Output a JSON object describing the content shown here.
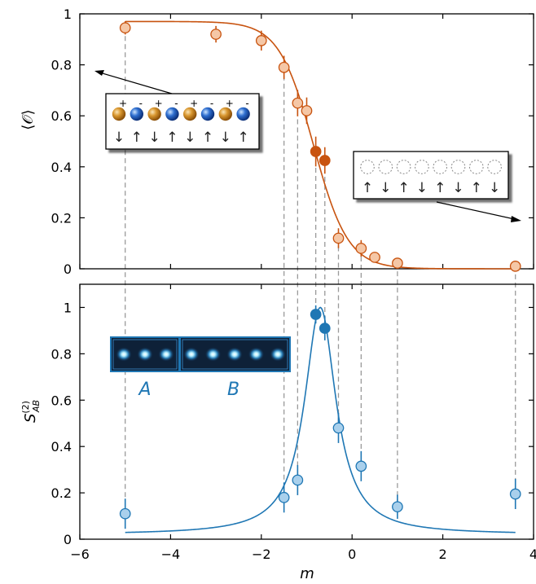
{
  "chart_data": [
    {
      "type": "scatter",
      "panel": "top",
      "ylabel": "⟨𝒪⟩",
      "xlim": [
        -6,
        4
      ],
      "ylim": [
        0,
        1
      ],
      "xticks": [
        -6,
        -4,
        -2,
        0,
        2,
        4
      ],
      "yticks": [
        0,
        0.2,
        0.4,
        0.6,
        0.8,
        1
      ],
      "ytick_labels": [
        "0",
        "0.2",
        "0.4",
        "0.6",
        "0.8",
        "1"
      ],
      "colors": {
        "line": "#c8530f",
        "marker_fill": "#f5c7a6",
        "marker_edge": "#c8530f",
        "highlight_fill": "#c8530f"
      },
      "points": [
        {
          "x": -5.0,
          "y": 0.945,
          "err": 0.02,
          "highlight": false
        },
        {
          "x": -3.0,
          "y": 0.92,
          "err": 0.025,
          "highlight": false
        },
        {
          "x": -2.0,
          "y": 0.895,
          "err": 0.03,
          "highlight": false
        },
        {
          "x": -1.5,
          "y": 0.79,
          "err": 0.035,
          "highlight": false
        },
        {
          "x": -1.2,
          "y": 0.65,
          "err": 0.04,
          "highlight": false
        },
        {
          "x": -1.0,
          "y": 0.62,
          "err": 0.04,
          "highlight": false
        },
        {
          "x": -0.8,
          "y": 0.46,
          "err": 0.045,
          "highlight": true
        },
        {
          "x": -0.6,
          "y": 0.425,
          "err": 0.04,
          "highlight": true
        },
        {
          "x": -0.3,
          "y": 0.12,
          "err": 0.03,
          "highlight": false
        },
        {
          "x": 0.2,
          "y": 0.08,
          "err": 0.025,
          "highlight": false
        },
        {
          "x": 0.5,
          "y": 0.045,
          "err": 0.015,
          "highlight": false
        },
        {
          "x": 1.0,
          "y": 0.022,
          "err": 0.01,
          "highlight": false
        },
        {
          "x": 3.6,
          "y": 0.01,
          "err": 0.005,
          "highlight": false
        }
      ],
      "fit": {
        "kind": "logistic",
        "amplitude": 0.97,
        "center": -0.85,
        "width": 0.38
      },
      "insets": [
        {
          "spheres": [
            "orange",
            "blue",
            "orange",
            "blue",
            "orange",
            "blue",
            "orange",
            "blue"
          ],
          "signs": [
            "+",
            "-",
            "+",
            "-",
            "+",
            "-",
            "+",
            "-"
          ],
          "arrows": [
            "↓",
            "↑",
            "↓",
            "↑",
            "↓",
            "↑",
            "↓",
            "↑"
          ],
          "pointer_to": "top-left"
        },
        {
          "spheres": [
            "empty",
            "empty",
            "empty",
            "empty",
            "empty",
            "empty",
            "empty",
            "empty"
          ],
          "arrows": [
            "↑",
            "↓",
            "↑",
            "↓",
            "↑",
            "↓",
            "↑",
            "↓"
          ],
          "pointer_to": "lower-right"
        }
      ]
    },
    {
      "type": "scatter",
      "panel": "bottom",
      "xlabel": "m",
      "ylabel": "S",
      "ylabel_superscript": "(2)",
      "ylabel_subscript": "AB",
      "xlim": [
        -6,
        4
      ],
      "ylim": [
        0,
        1.1
      ],
      "xticks": [
        -6,
        -4,
        -2,
        0,
        2,
        4
      ],
      "xtick_labels": [
        "−6",
        "−4",
        "−2",
        "0",
        "2",
        "4"
      ],
      "yticks": [
        0,
        0.2,
        0.4,
        0.6,
        0.8,
        1
      ],
      "ytick_labels": [
        "0",
        "0.2",
        "0.4",
        "0.6",
        "0.8",
        "1"
      ],
      "colors": {
        "line": "#1f77b4",
        "marker_fill": "#a9d0ec",
        "marker_edge": "#1f77b4",
        "highlight_fill": "#1f77b4"
      },
      "points": [
        {
          "x": -5.0,
          "y": 0.11,
          "err": 0.05,
          "highlight": false
        },
        {
          "x": -1.5,
          "y": 0.18,
          "err": 0.05,
          "highlight": false
        },
        {
          "x": -1.2,
          "y": 0.255,
          "err": 0.05,
          "highlight": false
        },
        {
          "x": -0.8,
          "y": 0.97,
          "err": 0.03,
          "highlight": true
        },
        {
          "x": -0.6,
          "y": 0.91,
          "err": 0.04,
          "highlight": true
        },
        {
          "x": -0.3,
          "y": 0.48,
          "err": 0.05,
          "highlight": false
        },
        {
          "x": 0.2,
          "y": 0.315,
          "err": 0.05,
          "highlight": false
        },
        {
          "x": 1.0,
          "y": 0.14,
          "err": 0.04,
          "highlight": false
        },
        {
          "x": 3.6,
          "y": 0.195,
          "err": 0.05,
          "highlight": false
        }
      ],
      "fit": {
        "kind": "lorentzian",
        "amplitude": 1.0,
        "center": -0.7,
        "width": 0.42,
        "baseline": 0.02
      },
      "inset": {
        "labels": [
          "A",
          "B"
        ],
        "dots_A": 3,
        "dots_B": 5
      }
    }
  ]
}
